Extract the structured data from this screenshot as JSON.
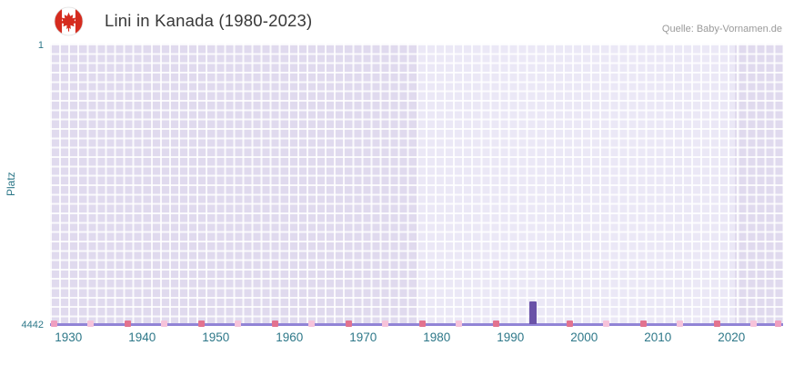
{
  "chart_data": {
    "type": "bar",
    "title": "Lini in Kanada (1980-2023)",
    "source": "Quelle: Baby-Vornamen.de",
    "ylabel": "Platz",
    "y_axis": {
      "top_label": "1",
      "bottom_label": "4442",
      "min": 1,
      "max": 4442,
      "inverted": true
    },
    "x_range": [
      1927.5,
      2027
    ],
    "x_ticks": [
      1930,
      1940,
      1950,
      1960,
      1970,
      1980,
      1990,
      2000,
      2010,
      2020
    ],
    "series": [
      {
        "name": "Lini",
        "points": [
          {
            "year": 1993,
            "rank": 4442
          }
        ]
      }
    ],
    "bar_color": "#6a52a8",
    "bar_height_fraction": 0.08,
    "axis_label_color": "#2e7889",
    "baseline_color": "#9184d6",
    "plot_bands": [
      {
        "from": 1927.5,
        "to": 1977.5,
        "color": "#e0daee"
      },
      {
        "from": 1977.5,
        "to": 2020.5,
        "color": "#ebe8f6"
      },
      {
        "from": 2020.5,
        "to": 2027,
        "color": "#e0daee"
      }
    ],
    "minor_marks": [
      {
        "year": 1928,
        "color": "#ef9fc0"
      },
      {
        "year": 1933,
        "color": "#f6c3da"
      },
      {
        "year": 1938,
        "color": "#e2738f"
      },
      {
        "year": 1943,
        "color": "#f6c3da"
      },
      {
        "year": 1948,
        "color": "#e2738f"
      },
      {
        "year": 1953,
        "color": "#f6c3da"
      },
      {
        "year": 1958,
        "color": "#e2738f"
      },
      {
        "year": 1963,
        "color": "#f6c3da"
      },
      {
        "year": 1968,
        "color": "#e2738f"
      },
      {
        "year": 1973,
        "color": "#f6c3da"
      },
      {
        "year": 1978,
        "color": "#e2738f"
      },
      {
        "year": 1983,
        "color": "#f6c3da"
      },
      {
        "year": 1988,
        "color": "#e2738f"
      },
      {
        "year": 1998,
        "color": "#e2738f"
      },
      {
        "year": 2003,
        "color": "#f6c3da"
      },
      {
        "year": 2008,
        "color": "#e2738f"
      },
      {
        "year": 2013,
        "color": "#f6c3da"
      },
      {
        "year": 2018,
        "color": "#e2738f"
      },
      {
        "year": 2023,
        "color": "#f6c3da"
      },
      {
        "year": 2026.3,
        "color": "#ef9fc0"
      }
    ]
  }
}
